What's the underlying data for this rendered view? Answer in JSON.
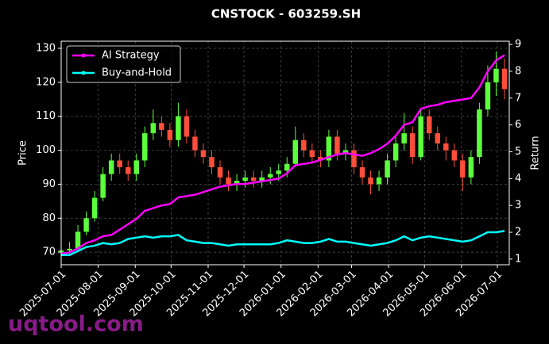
{
  "chart_data": {
    "type": "candlestick",
    "title": "CNSTOCK - 603259.SH",
    "ylabel": "Price",
    "y2label": "Return",
    "watermark": "uqtool.com",
    "x": [
      "2025-07-01",
      "2025-07-08",
      "2025-07-15",
      "2025-07-22",
      "2025-07-29",
      "2025-08-05",
      "2025-08-12",
      "2025-08-19",
      "2025-08-26",
      "2025-09-02",
      "2025-09-09",
      "2025-09-16",
      "2025-09-23",
      "2025-09-30",
      "2025-10-07",
      "2025-10-14",
      "2025-10-21",
      "2025-10-28",
      "2025-11-04",
      "2025-11-11",
      "2025-11-18",
      "2025-11-25",
      "2025-12-02",
      "2025-12-09",
      "2025-12-16",
      "2025-12-23",
      "2025-12-30",
      "2026-01-06",
      "2026-01-13",
      "2026-01-20",
      "2026-01-27",
      "2026-02-03",
      "2026-02-10",
      "2026-02-17",
      "2026-02-24",
      "2026-03-03",
      "2026-03-10",
      "2026-03-17",
      "2026-03-24",
      "2026-03-31",
      "2026-04-07",
      "2026-04-14",
      "2026-04-21",
      "2026-04-28",
      "2026-05-05",
      "2026-05-12",
      "2026-05-19",
      "2026-05-26",
      "2026-06-02",
      "2026-06-09",
      "2026-06-16",
      "2026-06-23",
      "2026-06-30",
      "2026-07-07"
    ],
    "open": [
      70,
      70.5,
      71,
      76,
      80,
      86,
      93,
      97,
      95,
      93,
      97,
      105,
      108,
      106,
      103,
      110,
      104,
      100,
      98,
      95,
      92,
      90,
      91,
      92,
      91,
      92,
      93,
      94,
      96,
      103,
      100,
      98,
      97,
      104,
      99,
      100,
      95,
      92,
      90,
      92,
      97,
      102,
      105,
      98,
      110,
      105,
      102,
      100,
      97,
      92,
      98,
      112,
      120,
      124
    ],
    "high": [
      72.5,
      73,
      78,
      82,
      88,
      95,
      99,
      99,
      97,
      99,
      107,
      112,
      110,
      108,
      114,
      112,
      106,
      102,
      100,
      97,
      94,
      93,
      94,
      94,
      94,
      95,
      96,
      98,
      107,
      105,
      102,
      100,
      106,
      106,
      102,
      102,
      97,
      94,
      94,
      99,
      104,
      111,
      107,
      112,
      112,
      107,
      104,
      102,
      99,
      100,
      114,
      125,
      129,
      127
    ],
    "low": [
      68.5,
      69,
      70,
      75,
      79,
      85,
      91,
      93,
      91,
      91,
      95,
      103,
      104,
      101,
      101,
      102,
      98,
      96,
      93,
      90,
      88,
      88,
      89,
      89,
      89,
      90,
      91,
      92,
      95,
      98,
      96,
      95,
      95,
      97,
      97,
      93,
      90,
      87,
      88,
      90,
      95,
      100,
      96,
      97,
      103,
      100,
      97,
      95,
      88,
      90,
      96,
      110,
      116,
      115
    ],
    "close": [
      70.5,
      71,
      76,
      80,
      86,
      93,
      97,
      95,
      93,
      97,
      105,
      108,
      106,
      103,
      110,
      104,
      100,
      98,
      95,
      92,
      90,
      91,
      92,
      91,
      92,
      93,
      94,
      96,
      103,
      100,
      98,
      97,
      104,
      99,
      100,
      95,
      92,
      90,
      92,
      97,
      102,
      105,
      98,
      110,
      105,
      102,
      100,
      97,
      92,
      98,
      112,
      120,
      124,
      118
    ],
    "up_color": "#5cff3c",
    "down_color": "#ff4e3a",
    "series": [
      {
        "name": "AI Strategy",
        "color": "#ff00ff",
        "axis": "y2",
        "values": [
          1.2,
          1.25,
          1.4,
          1.6,
          1.7,
          1.85,
          1.9,
          2.1,
          2.3,
          2.5,
          2.8,
          2.9,
          3.0,
          3.05,
          3.3,
          3.35,
          3.4,
          3.5,
          3.6,
          3.7,
          3.75,
          3.8,
          3.8,
          3.85,
          3.9,
          3.95,
          4.0,
          4.2,
          4.5,
          4.55,
          4.6,
          4.7,
          4.8,
          4.9,
          4.95,
          4.9,
          4.85,
          4.95,
          5.1,
          5.3,
          5.6,
          6.0,
          6.1,
          6.6,
          6.7,
          6.75,
          6.85,
          6.9,
          6.95,
          7.0,
          7.4,
          8.0,
          8.4,
          8.6
        ]
      },
      {
        "name": "Buy-and-Hold",
        "color": "#00ffff",
        "axis": "y2",
        "values": [
          1.15,
          1.15,
          1.3,
          1.45,
          1.5,
          1.6,
          1.55,
          1.6,
          1.75,
          1.8,
          1.85,
          1.8,
          1.85,
          1.85,
          1.9,
          1.7,
          1.65,
          1.6,
          1.6,
          1.55,
          1.5,
          1.55,
          1.55,
          1.55,
          1.55,
          1.55,
          1.6,
          1.7,
          1.65,
          1.6,
          1.6,
          1.65,
          1.75,
          1.65,
          1.65,
          1.6,
          1.55,
          1.5,
          1.55,
          1.6,
          1.7,
          1.85,
          1.7,
          1.8,
          1.85,
          1.8,
          1.75,
          1.7,
          1.65,
          1.7,
          1.85,
          2.0,
          2.0,
          2.05
        ]
      }
    ],
    "xlim": [
      "2025-07-01",
      "2026-07-11"
    ],
    "xticks": [
      "2025-07-01",
      "2025-08-01",
      "2025-09-01",
      "2025-10-01",
      "2025-11-01",
      "2025-12-01",
      "2026-01-01",
      "2026-02-01",
      "2026-03-01",
      "2026-04-01",
      "2026-05-01",
      "2026-06-01",
      "2026-07-01"
    ],
    "ylim": [
      66.3,
      132.1
    ],
    "yticks": [
      70,
      80,
      90,
      100,
      110,
      120,
      130
    ],
    "y2lim": [
      0.79,
      9.12
    ],
    "y2ticks": [
      1,
      2,
      3,
      4,
      5,
      6,
      7,
      8,
      9
    ],
    "grid": true,
    "legend": "upper left"
  }
}
